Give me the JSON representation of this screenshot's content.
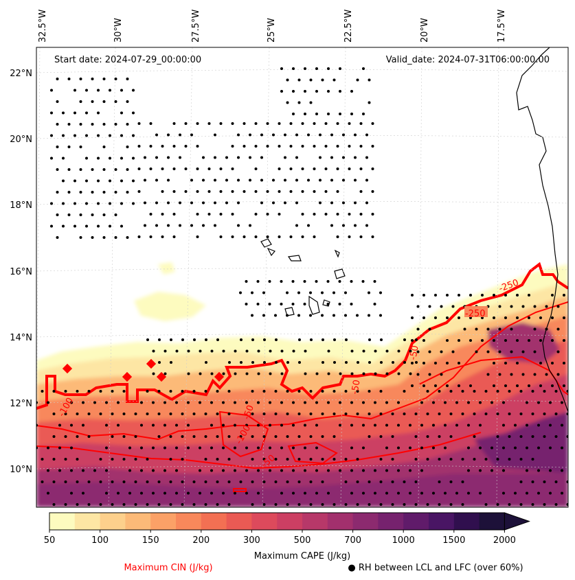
{
  "map": {
    "start_label": "Start date: 2024-07-29_00:00:00",
    "valid_label": "Valid_date: 2024-07-31T06:00:00.00",
    "lon_labels": [
      "32.5°W",
      "30°W",
      "27.5°W",
      "25°W",
      "22.5°W",
      "20°W",
      "17.5°W"
    ],
    "lat_labels": [
      "22°N",
      "20°N",
      "18°N",
      "16°N",
      "14°N",
      "12°N",
      "10°N"
    ],
    "cin_contour_labels": [
      "-250",
      "-250",
      "-100",
      "-50",
      "-100",
      "-50",
      "-50",
      "-250",
      "-50"
    ]
  },
  "colorbar": {
    "ticks": [
      "50",
      "100",
      "150",
      "200",
      "300",
      "500",
      "700",
      "1000",
      "1500",
      "2000"
    ],
    "colors": [
      "#fdfbbf",
      "#fde6a4",
      "#fdd08c",
      "#fcba78",
      "#fba167",
      "#f8885b",
      "#f37053",
      "#ea5a54",
      "#dd4a5c",
      "#cc3f63",
      "#b73869",
      "#a2306d",
      "#8c2a6f",
      "#76226e",
      "#601b6a",
      "#491564",
      "#300f4e",
      "#1d1139"
    ],
    "label": "Maximum CAPE (J/kg)"
  },
  "legend": {
    "cin": "Maximum CIN (J/kg)",
    "cin_color": "#ff0000",
    "rh": "● RH between LCL and LFC (over 60%)"
  }
}
